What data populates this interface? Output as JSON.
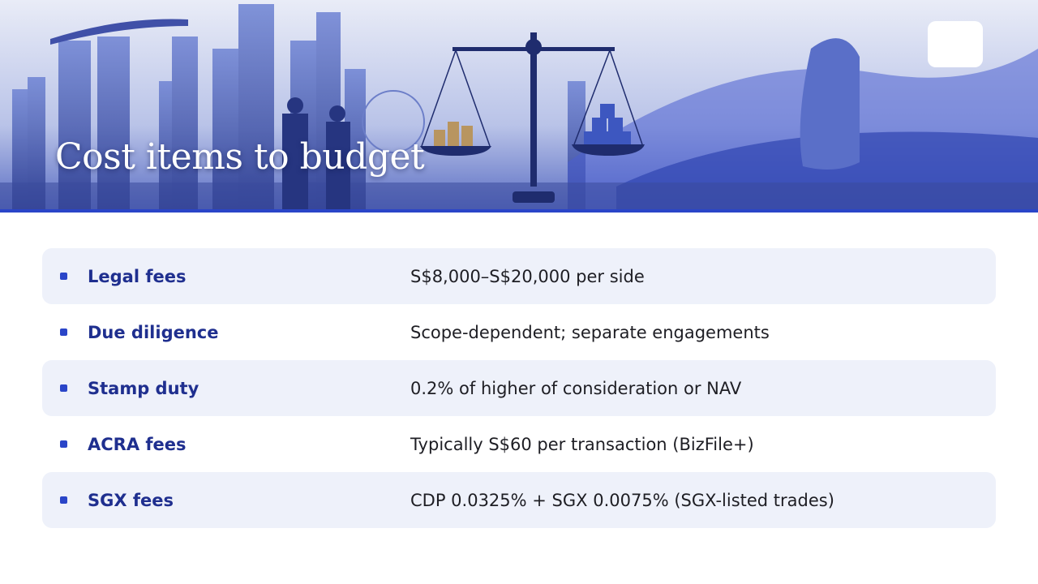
{
  "header": {
    "title": "Cost items to budget"
  },
  "rows": [
    {
      "label": "Legal fees",
      "value": "S$8,000–S$20,000 per side"
    },
    {
      "label": "Due diligence",
      "value": "Scope-dependent; separate engagements"
    },
    {
      "label": "Stamp duty",
      "value": "0.2% of higher of consideration or NAV"
    },
    {
      "label": "ACRA fees",
      "value": "Typically S$60 per transaction (BizFile+)"
    },
    {
      "label": "SGX fees",
      "value": "CDP 0.0325% + SGX 0.0075% (SGX-listed trades)"
    }
  ]
}
